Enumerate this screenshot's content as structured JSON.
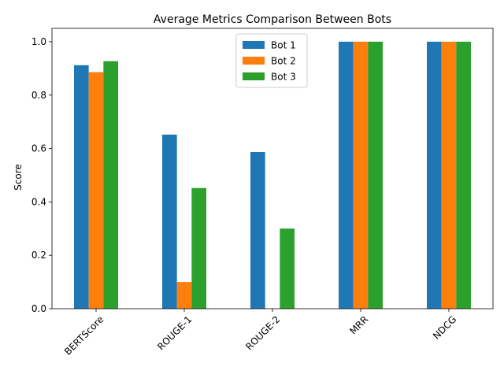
{
  "chart_data": {
    "type": "bar",
    "title": "Average Metrics Comparison Between Bots",
    "xlabel": "",
    "ylabel": "Score",
    "categories": [
      "BERTScore",
      "ROUGE-1",
      "ROUGE-2",
      "MRR",
      "NDCG"
    ],
    "series": [
      {
        "name": "Bot 1",
        "color": "#1f77b4",
        "values": [
          0.912,
          0.652,
          0.587,
          1.0,
          1.0
        ]
      },
      {
        "name": "Bot 2",
        "color": "#ff7f0e",
        "values": [
          0.886,
          0.1,
          0.0,
          1.0,
          1.0
        ]
      },
      {
        "name": "Bot 3",
        "color": "#2ca02c",
        "values": [
          0.927,
          0.452,
          0.3,
          1.0,
          1.0
        ]
      }
    ],
    "ylim": [
      0,
      1.05
    ],
    "yticks": [
      "0.0",
      "0.2",
      "0.4",
      "0.6",
      "0.8",
      "1.0"
    ],
    "grid": false,
    "legend_position": "top-center",
    "xtick_rotation": 45
  }
}
